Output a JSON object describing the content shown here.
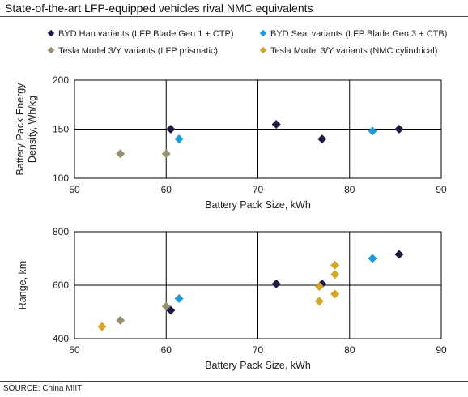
{
  "title": "State-of-the-art LFP-equipped vehicles rival NMC equivalents",
  "source": "SOURCE: China MIIT",
  "legend": [
    {
      "label": "BYD Han variants (LFP Blade Gen 1 + CTP)",
      "color": "#1f1a45"
    },
    {
      "label": "BYD Seal variants (LFP Blade Gen 3 + CTB)",
      "color": "#1e9bd7"
    },
    {
      "label": "Tesla Model 3/Y variants (LFP prismatic)",
      "color": "#9a9070"
    },
    {
      "label": "Tesla Model 3/Y variants (NMC cylindrical)",
      "color": "#d4a72c"
    }
  ],
  "chart_data": [
    {
      "type": "scatter",
      "xlabel": "Battery Pack Size, kWh",
      "ylabel": "Battery Pack Energy Density, Wh/kg",
      "xlim": [
        50,
        90
      ],
      "ylim": [
        100,
        200
      ],
      "xticks": [
        50,
        60,
        70,
        80,
        90
      ],
      "yticks": [
        100,
        150,
        200
      ],
      "grid": true,
      "series": [
        {
          "name": "BYD Han variants (LFP Blade Gen 1 + CTP)",
          "color": "#1f1a45",
          "points": [
            [
              60.5,
              150
            ],
            [
              72,
              155
            ],
            [
              77,
              140
            ],
            [
              85.4,
              150
            ]
          ]
        },
        {
          "name": "BYD Seal variants (LFP Blade Gen 3 + CTB)",
          "color": "#1e9bd7",
          "points": [
            [
              61.4,
              140
            ],
            [
              82.5,
              148
            ]
          ]
        },
        {
          "name": "Tesla Model 3/Y variants (LFP prismatic)",
          "color": "#9a9070",
          "points": [
            [
              55,
              125
            ],
            [
              60,
              125
            ]
          ]
        },
        {
          "name": "Tesla Model 3/Y variants (NMC cylindrical)",
          "color": "#d4a72c",
          "points": []
        }
      ]
    },
    {
      "type": "scatter",
      "xlabel": "Battery Pack Size, kWh",
      "ylabel": "Range, km",
      "xlim": [
        50,
        90
      ],
      "ylim": [
        400,
        800
      ],
      "xticks": [
        50,
        60,
        70,
        80,
        90
      ],
      "yticks": [
        400,
        600,
        800
      ],
      "grid": true,
      "series": [
        {
          "name": "BYD Han variants (LFP Blade Gen 1 + CTP)",
          "color": "#1f1a45",
          "points": [
            [
              60.5,
              506
            ],
            [
              72,
              605
            ],
            [
              77,
              605
            ],
            [
              85.4,
              715
            ]
          ]
        },
        {
          "name": "BYD Seal variants (LFP Blade Gen 3 + CTB)",
          "color": "#1e9bd7",
          "points": [
            [
              61.4,
              550
            ],
            [
              82.5,
              700
            ]
          ]
        },
        {
          "name": "Tesla Model 3/Y variants (LFP prismatic)",
          "color": "#9a9070",
          "points": [
            [
              55,
              468
            ],
            [
              60,
              521
            ]
          ]
        },
        {
          "name": "Tesla Model 3/Y variants (NMC cylindrical)",
          "color": "#d4a72c",
          "points": [
            [
              53,
              445
            ],
            [
              76.7,
              540
            ],
            [
              76.7,
              595
            ],
            [
              78.4,
              675
            ],
            [
              78.4,
              640
            ],
            [
              78.4,
              567
            ]
          ]
        }
      ]
    }
  ]
}
